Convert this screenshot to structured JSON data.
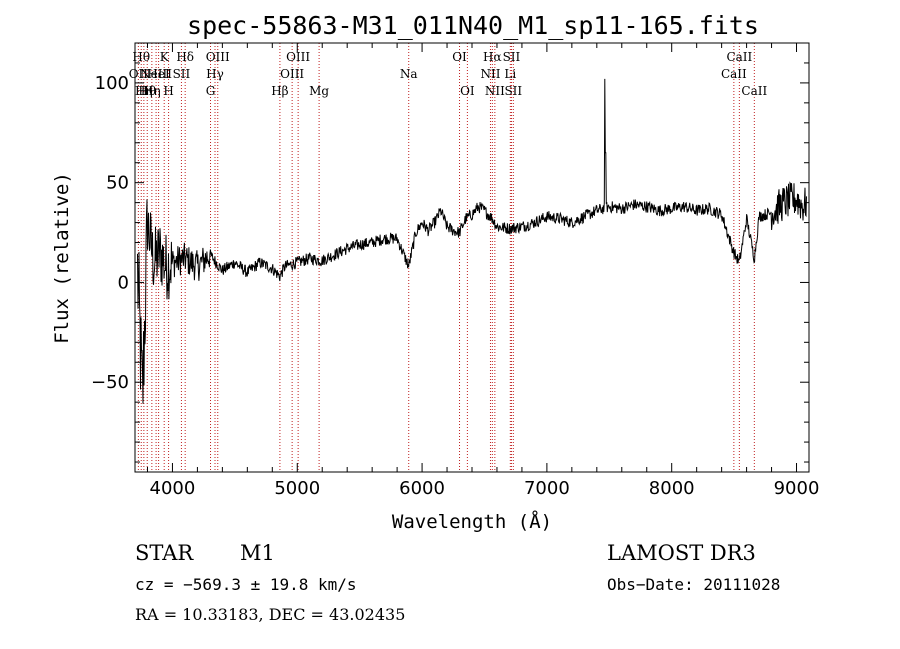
{
  "chart_data": {
    "type": "line",
    "title": "spec-55863-M31_011N40_M1_sp11-165.fits",
    "xlabel": "Wavelength (Å)",
    "ylabel": "Flux (relative)",
    "xlim": [
      3700,
      9100
    ],
    "ylim": [
      -95,
      120
    ],
    "x_ticks": [
      4000,
      5000,
      6000,
      7000,
      8000,
      9000
    ],
    "y_ticks": [
      -50,
      0,
      50,
      100
    ],
    "x_tick_labels": [
      "4000",
      "5000",
      "6000",
      "7000",
      "8000",
      "9000"
    ],
    "y_tick_labels": [
      "−50",
      "0",
      "50",
      "100"
    ],
    "spectrum_anchors": [
      [
        3720,
        5
      ],
      [
        3760,
        -60
      ],
      [
        3800,
        30
      ],
      [
        3850,
        10
      ],
      [
        3900,
        15
      ],
      [
        3950,
        8
      ],
      [
        4000,
        10
      ],
      [
        4100,
        12
      ],
      [
        4200,
        8
      ],
      [
        4300,
        14
      ],
      [
        4400,
        6
      ],
      [
        4500,
        10
      ],
      [
        4600,
        5
      ],
      [
        4700,
        10
      ],
      [
        4800,
        7
      ],
      [
        4860,
        3
      ],
      [
        4900,
        8
      ],
      [
        5000,
        10
      ],
      [
        5100,
        12
      ],
      [
        5200,
        11
      ],
      [
        5300,
        14
      ],
      [
        5400,
        17
      ],
      [
        5500,
        19
      ],
      [
        5600,
        20
      ],
      [
        5700,
        22
      ],
      [
        5800,
        22
      ],
      [
        5893,
        8
      ],
      [
        5950,
        25
      ],
      [
        6000,
        30
      ],
      [
        6050,
        26
      ],
      [
        6100,
        30
      ],
      [
        6150,
        36
      ],
      [
        6200,
        28
      ],
      [
        6250,
        26
      ],
      [
        6300,
        25
      ],
      [
        6350,
        32
      ],
      [
        6400,
        34
      ],
      [
        6450,
        38
      ],
      [
        6500,
        36
      ],
      [
        6563,
        32
      ],
      [
        6600,
        28
      ],
      [
        6700,
        27
      ],
      [
        6800,
        28
      ],
      [
        6900,
        30
      ],
      [
        7000,
        33
      ],
      [
        7100,
        32
      ],
      [
        7200,
        30
      ],
      [
        7300,
        33
      ],
      [
        7400,
        36
      ],
      [
        7500,
        38
      ],
      [
        7600,
        37
      ],
      [
        7700,
        39
      ],
      [
        7800,
        38
      ],
      [
        7900,
        36
      ],
      [
        8000,
        37
      ],
      [
        8100,
        38
      ],
      [
        8200,
        36
      ],
      [
        8300,
        37
      ],
      [
        8400,
        34
      ],
      [
        8498,
        15
      ],
      [
        8542,
        10
      ],
      [
        8600,
        32
      ],
      [
        8662,
        12
      ],
      [
        8700,
        33
      ],
      [
        8800,
        35
      ],
      [
        8900,
        40
      ],
      [
        9000,
        42
      ],
      [
        9050,
        38
      ],
      [
        9080,
        40
      ]
    ],
    "emission_peaks": [
      {
        "x": 7465,
        "y": 102
      },
      {
        "x": 7470,
        "y": 65
      }
    ],
    "line_markers": [
      {
        "x": 3727,
        "label": "OII",
        "row": 1
      },
      {
        "x": 3750,
        "label": "Hθ",
        "row": 0
      },
      {
        "x": 3771,
        "label": "Hη",
        "row": 2
      },
      {
        "x": 3798,
        "label": "Hθ",
        "row": 2
      },
      {
        "x": 3835,
        "label": "Hη",
        "row": 2
      },
      {
        "x": 3869,
        "label": "NeIII",
        "row": 1
      },
      {
        "x": 3889,
        "label": "HeI",
        "row": 1
      },
      {
        "x": 3934,
        "label": "K",
        "row": 0
      },
      {
        "x": 3969,
        "label": "H",
        "row": 2
      },
      {
        "x": 4072,
        "label": "SII",
        "row": 1
      },
      {
        "x": 4102,
        "label": "Hδ",
        "row": 0
      },
      {
        "x": 4305,
        "label": "G",
        "row": 2
      },
      {
        "x": 4341,
        "label": "Hγ",
        "row": 1
      },
      {
        "x": 4363,
        "label": "OIII",
        "row": 0
      },
      {
        "x": 4861,
        "label": "Hβ",
        "row": 2
      },
      {
        "x": 4959,
        "label": "OIII",
        "row": 1
      },
      {
        "x": 5007,
        "label": "OIII",
        "row": 0
      },
      {
        "x": 5175,
        "label": "Mg",
        "row": 2
      },
      {
        "x": 5893,
        "label": "Na",
        "row": 1
      },
      {
        "x": 6300,
        "label": "OI",
        "row": 0
      },
      {
        "x": 6363,
        "label": "OI",
        "row": 2
      },
      {
        "x": 6548,
        "label": "NII",
        "row": 1
      },
      {
        "x": 6563,
        "label": "Hα",
        "row": 0
      },
      {
        "x": 6583,
        "label": "NII",
        "row": 2
      },
      {
        "x": 6707,
        "label": "Li",
        "row": 1
      },
      {
        "x": 6716,
        "label": "SII",
        "row": 0
      },
      {
        "x": 6731,
        "label": "SII",
        "row": 2
      },
      {
        "x": 8498,
        "label": "CaII",
        "row": 1
      },
      {
        "x": 8542,
        "label": "CaII",
        "row": 0
      },
      {
        "x": 8662,
        "label": "CaII",
        "row": 2
      }
    ],
    "marker_color": "#c02020",
    "spectrum_color": "#000000"
  },
  "info": {
    "object_class": "STAR",
    "subclass": "M1",
    "survey": "LAMOST DR3",
    "velocity": "cz = −569.3 ± 19.8 km/s",
    "obs_date": "Obs−Date: 20111028",
    "coords": "RA =  10.33183, DEC =  43.02435"
  }
}
